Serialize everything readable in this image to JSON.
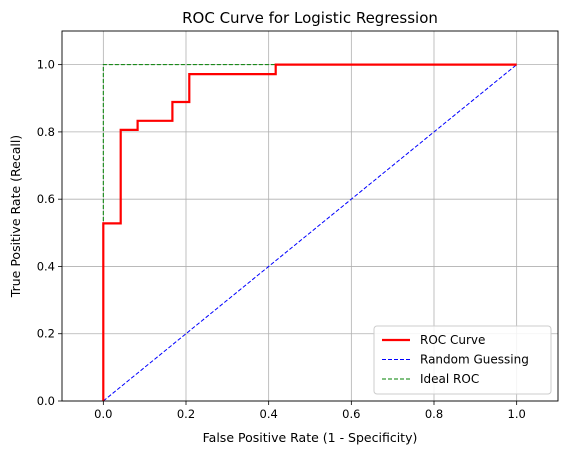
{
  "chart_data": {
    "type": "line",
    "title": "ROC Curve for Logistic Regression",
    "xlabel": "False Positive Rate (1 - Specificity)",
    "ylabel": "True Positive Rate (Recall)",
    "xlim": [
      -0.1,
      1.1
    ],
    "ylim": [
      0.0,
      1.1
    ],
    "xticks": [
      0.0,
      0.2,
      0.4,
      0.6,
      0.8,
      1.0
    ],
    "yticks": [
      0.0,
      0.2,
      0.4,
      0.6,
      0.8,
      1.0
    ],
    "xtick_labels": [
      "0.0",
      "0.2",
      "0.4",
      "0.6",
      "0.8",
      "1.0"
    ],
    "ytick_labels": [
      "0.0",
      "0.2",
      "0.4",
      "0.6",
      "0.8",
      "1.0"
    ],
    "grid": true,
    "legend_position": "lower-right",
    "series": [
      {
        "name": "ROC Curve",
        "color": "#ff0000",
        "style": "solid",
        "x": [
          0.0,
          0.0,
          0.0,
          0.042,
          0.042,
          0.083,
          0.083,
          0.167,
          0.167,
          0.208,
          0.208,
          0.417,
          0.417,
          1.0
        ],
        "y": [
          0.0,
          0.028,
          0.528,
          0.528,
          0.806,
          0.806,
          0.833,
          0.833,
          0.889,
          0.889,
          0.972,
          0.972,
          1.0,
          1.0
        ]
      },
      {
        "name": "Random Guessing",
        "color": "#0000ff",
        "style": "dashed",
        "x": [
          0.0,
          1.0
        ],
        "y": [
          0.0,
          1.0
        ]
      },
      {
        "name": "Ideal ROC",
        "color": "#008000",
        "style": "dashed",
        "x": [
          0.0,
          0.0,
          1.0
        ],
        "y": [
          0.0,
          1.0,
          1.0
        ]
      }
    ]
  }
}
